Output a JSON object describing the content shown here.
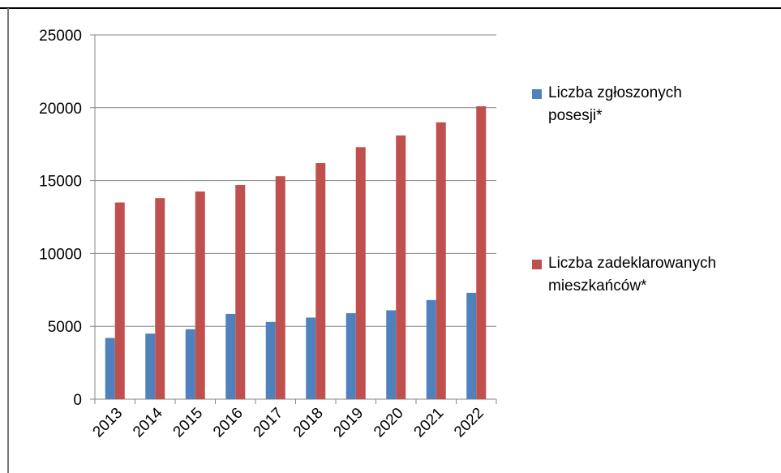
{
  "chart_data": {
    "type": "bar",
    "categories": [
      "2013",
      "2014",
      "2015",
      "2016",
      "2017",
      "2018",
      "2019",
      "2020",
      "2021",
      "2022"
    ],
    "series": [
      {
        "name": "Liczba zgłoszonych posesji*",
        "color": "#4f81bd",
        "values": [
          4200,
          4500,
          4800,
          5850,
          5300,
          5600,
          5900,
          6100,
          6800,
          7300
        ]
      },
      {
        "name": "Liczba zadeklarowanych mieszkańców*",
        "color": "#c0504d",
        "values": [
          13500,
          13800,
          14250,
          14700,
          15300,
          16200,
          17300,
          18100,
          19000,
          20100
        ]
      }
    ],
    "ylim": [
      0,
      25000
    ],
    "yticks": [
      0,
      5000,
      10000,
      15000,
      20000,
      25000
    ],
    "grid": true,
    "legend": "right"
  }
}
